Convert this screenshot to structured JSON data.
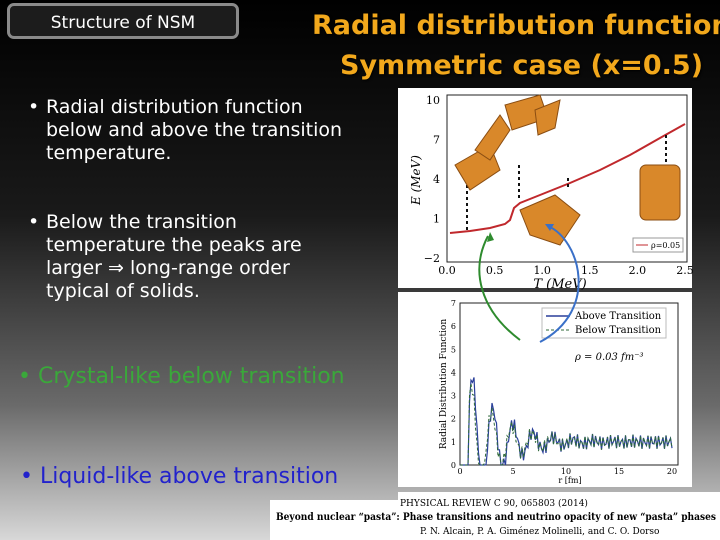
{
  "header": {
    "tag": "Structure of NSM",
    "title_line1": "Radial distribution function",
    "title_line2": "Symmetric case (x=0.5)"
  },
  "bullets": [
    "Radial distribution function below and above the transition temperature.",
    "Below the transition temperature the peaks are larger ⇒ long-range order typical of solids."
  ],
  "highlights": {
    "crystal": "• Crystal-like below transition",
    "liquid": "• Liquid-like above transition"
  },
  "top_plot": {
    "y_label": "E (MeV)",
    "x_label": "T (MeV)",
    "y_ticks": [
      "10",
      "7",
      "4",
      "1",
      "−2"
    ],
    "x_ticks": [
      "0.0",
      "0.5",
      "1.0",
      "1.5",
      "2.0",
      "2.5"
    ],
    "legend": "ρ=0.05"
  },
  "bottom_plot": {
    "y_label": "Radial Distribution Function",
    "x_label": "r [fm]",
    "y_ticks": [
      "7",
      "6",
      "5",
      "4",
      "3",
      "2",
      "1",
      "0"
    ],
    "x_ticks": [
      "0",
      "5",
      "10",
      "15",
      "20"
    ],
    "legend": [
      "Above Transition",
      "Below Transition"
    ],
    "annotation": "ρ = 0.03 fm⁻³"
  },
  "citation": {
    "journal": "PHYSICAL REVIEW C 90, 065803 (2014)",
    "title": "Beyond nuclear “pasta”: Phase transitions and neutrino opacity of new “pasta” phases",
    "authors": "P. N. Alcain, P. A. Giménez Molinelli, and C. O. Dorso"
  }
}
